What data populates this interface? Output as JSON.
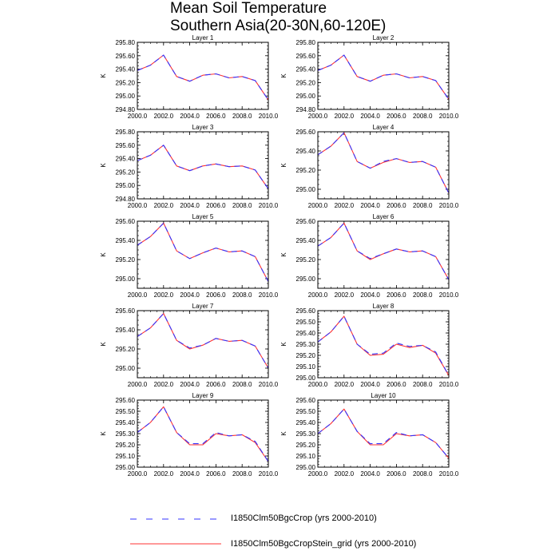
{
  "figure": {
    "title_line1": "Mean Soil Temperature",
    "title_line2": "Southern Asia(20-30N,60-120E)"
  },
  "legend": [
    {
      "label": "I1850Clm50BgcCrop (yrs 2000-2010)",
      "color": "#3333ff",
      "style": "dashed"
    },
    {
      "label": "I1850Clm50BgcCropStein_grid (yrs 2000-2010)",
      "color": "#ff3333",
      "style": "solid"
    }
  ],
  "chart_data": [
    {
      "type": "line",
      "title": "Layer 1",
      "ylabel": "K",
      "xlim": [
        2000,
        2010
      ],
      "ylim": [
        294.8,
        295.8
      ],
      "xticks": [
        "2000.0",
        "2002.0",
        "2004.0",
        "2006.0",
        "2008.0",
        "2010.0"
      ],
      "yticks": [
        "294.80",
        "295.00",
        "295.20",
        "295.40",
        "295.60",
        "295.80"
      ],
      "x": [
        2000,
        2001,
        2002,
        2003,
        2004,
        2005,
        2006,
        2007,
        2008,
        2009,
        2010
      ],
      "series": [
        {
          "name": "I1850Clm50BgcCrop (yrs 2000-2010)",
          "values": [
            295.38,
            295.46,
            295.61,
            295.29,
            295.22,
            295.31,
            295.33,
            295.27,
            295.29,
            295.23,
            294.94
          ]
        },
        {
          "name": "I1850Clm50BgcCropStein_grid (yrs 2000-2010)",
          "values": [
            295.38,
            295.46,
            295.61,
            295.29,
            295.22,
            295.31,
            295.33,
            295.27,
            295.29,
            295.23,
            294.94
          ]
        }
      ]
    },
    {
      "type": "line",
      "title": "Layer 2",
      "ylabel": "K",
      "xlim": [
        2000,
        2010
      ],
      "ylim": [
        294.8,
        295.8
      ],
      "xticks": [
        "2000.0",
        "2002.0",
        "2004.0",
        "2006.0",
        "2008.0",
        "2010.0"
      ],
      "yticks": [
        "294.80",
        "295.00",
        "295.20",
        "295.40",
        "295.60",
        "295.80"
      ],
      "x": [
        2000,
        2001,
        2002,
        2003,
        2004,
        2005,
        2006,
        2007,
        2008,
        2009,
        2010
      ],
      "series": [
        {
          "name": "I1850Clm50BgcCrop (yrs 2000-2010)",
          "values": [
            295.38,
            295.46,
            295.61,
            295.29,
            295.22,
            295.31,
            295.33,
            295.27,
            295.29,
            295.23,
            294.95
          ]
        },
        {
          "name": "I1850Clm50BgcCropStein_grid (yrs 2000-2010)",
          "values": [
            295.38,
            295.46,
            295.61,
            295.29,
            295.22,
            295.31,
            295.33,
            295.27,
            295.29,
            295.23,
            294.95
          ]
        }
      ]
    },
    {
      "type": "line",
      "title": "Layer 3",
      "ylabel": "K",
      "xlim": [
        2000,
        2010
      ],
      "ylim": [
        294.8,
        295.8
      ],
      "xticks": [
        "2000.0",
        "2002.0",
        "2004.0",
        "2006.0",
        "2008.0",
        "2010.0"
      ],
      "yticks": [
        "294.80",
        "295.00",
        "295.20",
        "295.40",
        "295.60",
        "295.80"
      ],
      "x": [
        2000,
        2001,
        2002,
        2003,
        2004,
        2005,
        2006,
        2007,
        2008,
        2009,
        2010
      ],
      "series": [
        {
          "name": "I1850Clm50BgcCrop (yrs 2000-2010)",
          "values": [
            295.37,
            295.45,
            295.6,
            295.29,
            295.22,
            295.29,
            295.32,
            295.28,
            295.29,
            295.23,
            294.95
          ]
        },
        {
          "name": "I1850Clm50BgcCropStein_grid (yrs 2000-2010)",
          "values": [
            295.37,
            295.45,
            295.6,
            295.29,
            295.22,
            295.29,
            295.32,
            295.28,
            295.29,
            295.23,
            294.95
          ]
        }
      ]
    },
    {
      "type": "line",
      "title": "Layer 4",
      "ylabel": "K",
      "xlim": [
        2000,
        2010
      ],
      "ylim": [
        294.9,
        295.6
      ],
      "xticks": [
        "2000.0",
        "2002.0",
        "2004.0",
        "2006.0",
        "2008.0",
        "2010.0"
      ],
      "yticks": [
        "295.00",
        "295.20",
        "295.40",
        "295.60"
      ],
      "x": [
        2000,
        2001,
        2002,
        2003,
        2004,
        2005,
        2006,
        2007,
        2008,
        2009,
        2010
      ],
      "series": [
        {
          "name": "I1850Clm50BgcCrop (yrs 2000-2010)",
          "values": [
            295.36,
            295.45,
            295.59,
            295.29,
            295.22,
            295.29,
            295.32,
            295.28,
            295.29,
            295.23,
            294.96
          ]
        },
        {
          "name": "I1850Clm50BgcCropStein_grid (yrs 2000-2010)",
          "values": [
            295.36,
            295.45,
            295.59,
            295.29,
            295.22,
            295.28,
            295.32,
            295.28,
            295.29,
            295.23,
            294.96
          ]
        }
      ]
    },
    {
      "type": "line",
      "title": "Layer 5",
      "ylabel": "K",
      "xlim": [
        2000,
        2010
      ],
      "ylim": [
        294.9,
        295.6
      ],
      "xticks": [
        "2000.0",
        "2002.0",
        "2004.0",
        "2006.0",
        "2008.0",
        "2010.0"
      ],
      "yticks": [
        "295.00",
        "295.20",
        "295.40",
        "295.60"
      ],
      "x": [
        2000,
        2001,
        2002,
        2003,
        2004,
        2005,
        2006,
        2007,
        2008,
        2009,
        2010
      ],
      "series": [
        {
          "name": "I1850Clm50BgcCrop (yrs 2000-2010)",
          "values": [
            295.35,
            295.44,
            295.58,
            295.29,
            295.21,
            295.27,
            295.32,
            295.28,
            295.29,
            295.23,
            294.97
          ]
        },
        {
          "name": "I1850Clm50BgcCropStein_grid (yrs 2000-2010)",
          "values": [
            295.35,
            295.44,
            295.58,
            295.29,
            295.21,
            295.27,
            295.32,
            295.28,
            295.29,
            295.23,
            294.97
          ]
        }
      ]
    },
    {
      "type": "line",
      "title": "Layer 6",
      "ylabel": "K",
      "xlim": [
        2000,
        2010
      ],
      "ylim": [
        294.9,
        295.6
      ],
      "xticks": [
        "2000.0",
        "2002.0",
        "2004.0",
        "2006.0",
        "2008.0",
        "2010.0"
      ],
      "yticks": [
        "295.00",
        "295.20",
        "295.40",
        "295.60"
      ],
      "x": [
        2000,
        2001,
        2002,
        2003,
        2004,
        2005,
        2006,
        2007,
        2008,
        2009,
        2010
      ],
      "series": [
        {
          "name": "I1850Clm50BgcCrop (yrs 2000-2010)",
          "values": [
            295.34,
            295.43,
            295.58,
            295.29,
            295.21,
            295.26,
            295.31,
            295.28,
            295.29,
            295.23,
            294.99
          ]
        },
        {
          "name": "I1850Clm50BgcCropStein_grid (yrs 2000-2010)",
          "values": [
            295.34,
            295.43,
            295.58,
            295.29,
            295.2,
            295.26,
            295.31,
            295.28,
            295.29,
            295.23,
            294.99
          ]
        }
      ]
    },
    {
      "type": "line",
      "title": "Layer 7",
      "ylabel": "K",
      "xlim": [
        2000,
        2010
      ],
      "ylim": [
        294.9,
        295.6
      ],
      "xticks": [
        "2000.0",
        "2002.0",
        "2004.0",
        "2006.0",
        "2008.0",
        "2010.0"
      ],
      "yticks": [
        "295.00",
        "295.20",
        "295.40",
        "295.60"
      ],
      "x": [
        2000,
        2001,
        2002,
        2003,
        2004,
        2005,
        2006,
        2007,
        2008,
        2009,
        2010
      ],
      "series": [
        {
          "name": "I1850Clm50BgcCrop (yrs 2000-2010)",
          "values": [
            295.33,
            295.42,
            295.57,
            295.29,
            295.21,
            295.24,
            295.31,
            295.28,
            295.29,
            295.23,
            295.0
          ]
        },
        {
          "name": "I1850Clm50BgcCropStein_grid (yrs 2000-2010)",
          "values": [
            295.33,
            295.42,
            295.57,
            295.29,
            295.2,
            295.24,
            295.31,
            295.28,
            295.29,
            295.23,
            295.0
          ]
        }
      ]
    },
    {
      "type": "line",
      "title": "Layer 8",
      "ylabel": "K",
      "xlim": [
        2000,
        2010
      ],
      "ylim": [
        295.0,
        295.6
      ],
      "xticks": [
        "2000.0",
        "2002.0",
        "2004.0",
        "2006.0",
        "2008.0",
        "2010.0"
      ],
      "yticks": [
        "295.00",
        "295.10",
        "295.20",
        "295.30",
        "295.40",
        "295.50",
        "295.60"
      ],
      "x": [
        2000,
        2001,
        2002,
        2003,
        2004,
        2005,
        2006,
        2007,
        2008,
        2009,
        2010
      ],
      "series": [
        {
          "name": "I1850Clm50BgcCrop (yrs 2000-2010)",
          "values": [
            295.32,
            295.41,
            295.55,
            295.3,
            295.21,
            295.22,
            295.31,
            295.28,
            295.29,
            295.23,
            295.02
          ]
        },
        {
          "name": "I1850Clm50BgcCropStein_grid (yrs 2000-2010)",
          "values": [
            295.32,
            295.41,
            295.55,
            295.3,
            295.2,
            295.21,
            295.3,
            295.27,
            295.29,
            295.22,
            295.02
          ]
        }
      ]
    },
    {
      "type": "line",
      "title": "Layer 9",
      "ylabel": "K",
      "xlim": [
        2000,
        2010
      ],
      "ylim": [
        295.0,
        295.6
      ],
      "xticks": [
        "2000.0",
        "2002.0",
        "2004.0",
        "2006.0",
        "2008.0",
        "2010.0"
      ],
      "yticks": [
        "295.00",
        "295.10",
        "295.20",
        "295.30",
        "295.40",
        "295.50",
        "295.60"
      ],
      "x": [
        2000,
        2001,
        2002,
        2003,
        2004,
        2005,
        2006,
        2007,
        2008,
        2009,
        2010
      ],
      "series": [
        {
          "name": "I1850Clm50BgcCrop (yrs 2000-2010)",
          "values": [
            295.31,
            295.4,
            295.54,
            295.31,
            295.21,
            295.21,
            295.31,
            295.28,
            295.29,
            295.23,
            295.05
          ]
        },
        {
          "name": "I1850Clm50BgcCropStein_grid (yrs 2000-2010)",
          "values": [
            295.31,
            295.4,
            295.54,
            295.31,
            295.2,
            295.2,
            295.3,
            295.28,
            295.29,
            295.22,
            295.05
          ]
        }
      ]
    },
    {
      "type": "line",
      "title": "Layer 10",
      "ylabel": "K",
      "xlim": [
        2000,
        2010
      ],
      "ylim": [
        295.0,
        295.6
      ],
      "xticks": [
        "2000.0",
        "2002.0",
        "2004.0",
        "2006.0",
        "2008.0",
        "2010.0"
      ],
      "yticks": [
        "295.00",
        "295.10",
        "295.20",
        "295.30",
        "295.40",
        "295.50",
        "295.60"
      ],
      "x": [
        2000,
        2001,
        2002,
        2003,
        2004,
        2005,
        2006,
        2007,
        2008,
        2009,
        2010
      ],
      "series": [
        {
          "name": "I1850Clm50BgcCrop (yrs 2000-2010)",
          "values": [
            295.3,
            295.39,
            295.52,
            295.32,
            295.21,
            295.21,
            295.31,
            295.28,
            295.29,
            295.22,
            295.08
          ]
        },
        {
          "name": "I1850Clm50BgcCropStein_grid (yrs 2000-2010)",
          "values": [
            295.3,
            295.39,
            295.52,
            295.32,
            295.2,
            295.2,
            295.3,
            295.28,
            295.29,
            295.22,
            295.08
          ]
        }
      ]
    }
  ]
}
